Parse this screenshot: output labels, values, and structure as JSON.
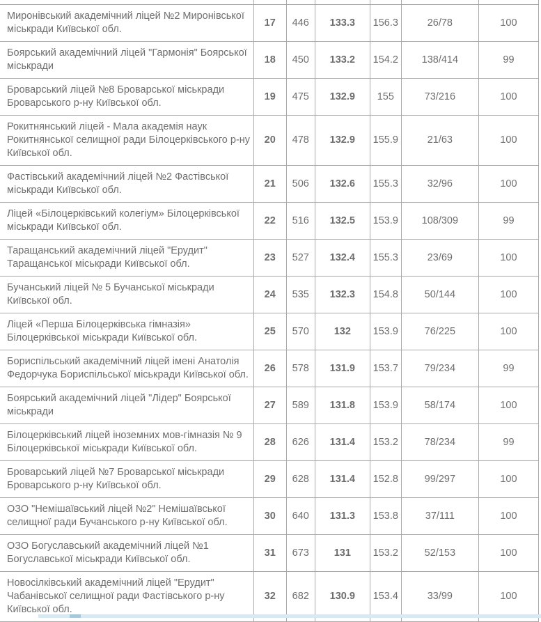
{
  "colors": {
    "table_border": "#a9a9a9",
    "cell_text": "#6e6e6e",
    "bold_text": "#585858",
    "highlight_strip": "#d8e9f4",
    "highlight_strip_dash": "#a9c7dc"
  },
  "table": {
    "rows": [
      {
        "name": "Миронівський академічний ліцей №2 Миронівської міськради Київської обл.",
        "rank": "17",
        "rank_ua": "446",
        "score": "133.3",
        "avg_score": "156.3",
        "ratio": "26/78",
        "percent": "100"
      },
      {
        "name": "Боярський академічний ліцей \"Гармонія\" Боярської міськради",
        "rank": "18",
        "rank_ua": "450",
        "score": "133.2",
        "avg_score": "154.2",
        "ratio": "138/414",
        "percent": "99"
      },
      {
        "name": "Броварський ліцей №8 Броварської міськради Броварського р-ну Київської обл.",
        "rank": "19",
        "rank_ua": "475",
        "score": "132.9",
        "avg_score": "155",
        "ratio": "73/216",
        "percent": "100"
      },
      {
        "name": "Рокитнянський ліцей - Мала академія наук Рокитнянської селищної ради Білоцерківського р-ну Київської обл.",
        "rank": "20",
        "rank_ua": "478",
        "score": "132.9",
        "avg_score": "155.9",
        "ratio": "21/63",
        "percent": "100"
      },
      {
        "name": "Фастівський академічний ліцей №2 Фастівської міськради Київської обл.",
        "rank": "21",
        "rank_ua": "506",
        "score": "132.6",
        "avg_score": "155.3",
        "ratio": "32/96",
        "percent": "100"
      },
      {
        "name": "Ліцей «Білоцерківський колегіум» Білоцерківської міськради Київської обл.",
        "rank": "22",
        "rank_ua": "516",
        "score": "132.5",
        "avg_score": "153.9",
        "ratio": "108/309",
        "percent": "99"
      },
      {
        "name": "Таращанський академічний ліцей \"Ерудит\" Таращанської міськради Київської обл.",
        "rank": "23",
        "rank_ua": "527",
        "score": "132.4",
        "avg_score": "155.3",
        "ratio": "23/69",
        "percent": "100"
      },
      {
        "name": "Бучанський ліцей № 5 Бучанської міськради Київської обл.",
        "rank": "24",
        "rank_ua": "535",
        "score": "132.3",
        "avg_score": "154.8",
        "ratio": "50/144",
        "percent": "100"
      },
      {
        "name": "Ліцей «Перша Білоцерківська гімназія» Білоцерківської міськради Київської обл.",
        "rank": "25",
        "rank_ua": "570",
        "score": "132",
        "avg_score": "153.9",
        "ratio": "76/225",
        "percent": "100"
      },
      {
        "name": "Бориспільський академічний ліцей імені Анатолія Федорчука Бориспільської міськради Київської обл.",
        "rank": "26",
        "rank_ua": "578",
        "score": "131.9",
        "avg_score": "153.7",
        "ratio": "79/234",
        "percent": "99"
      },
      {
        "name": "Боярський академічний ліцей \"Лідер\" Боярської міськради",
        "rank": "27",
        "rank_ua": "589",
        "score": "131.8",
        "avg_score": "153.9",
        "ratio": "58/174",
        "percent": "100"
      },
      {
        "name": "Білоцерківський ліцей іноземних мов-гімназія № 9 Білоцерківської міськради Київської обл.",
        "rank": "28",
        "rank_ua": "626",
        "score": "131.4",
        "avg_score": "153.2",
        "ratio": "78/234",
        "percent": "99"
      },
      {
        "name": "Броварський ліцей №7 Броварської міськради Броварського р-ну Київської обл.",
        "rank": "29",
        "rank_ua": "628",
        "score": "131.4",
        "avg_score": "152.8",
        "ratio": "99/297",
        "percent": "100"
      },
      {
        "name": "ОЗО \"Немішаївський ліцей №2\" Немішаївської селищної ради Бучанського р-ну Київської обл.",
        "rank": "30",
        "rank_ua": "640",
        "score": "131.3",
        "avg_score": "153.8",
        "ratio": "37/111",
        "percent": "100"
      },
      {
        "name": "ОЗО Богуславський академічний ліцей №1 Богуславської міськради Київської обл.",
        "rank": "31",
        "rank_ua": "673",
        "score": "131",
        "avg_score": "153.2",
        "ratio": "52/153",
        "percent": "100"
      },
      {
        "name": "Новосілківський академічний ліцей \"Ерудит\" Чабанівської селищної ради Фастівського р-ну Київської обл.",
        "rank": "32",
        "rank_ua": "682",
        "score": "130.9",
        "avg_score": "153.4",
        "ratio": "33/99",
        "percent": "100"
      }
    ]
  }
}
